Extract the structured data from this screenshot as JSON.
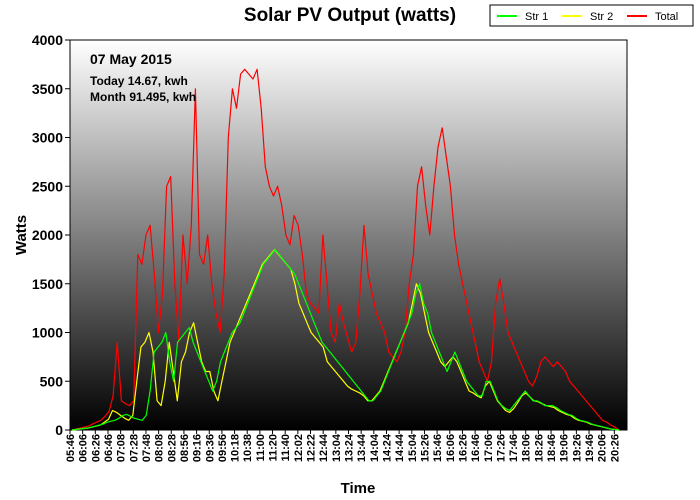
{
  "chart_data": {
    "type": "line",
    "title": "Solar PV Output (watts)",
    "xlabel": "Time",
    "ylabel": "Watts",
    "ylim": [
      0,
      4000
    ],
    "yticks": [
      0,
      500,
      1000,
      1500,
      2000,
      2500,
      3000,
      3500,
      4000
    ],
    "xticks": [
      "05:46",
      "06:06",
      "06:26",
      "06:46",
      "07:08",
      "07:28",
      "07:48",
      "08:08",
      "08:28",
      "08:56",
      "09:16",
      "09:36",
      "09:56",
      "10:18",
      "10:38",
      "11:00",
      "11:20",
      "11:40",
      "12:02",
      "12:22",
      "12:44",
      "13:04",
      "13:24",
      "13:44",
      "14:04",
      "14:24",
      "14:44",
      "15:04",
      "15:26",
      "15:46",
      "16:06",
      "16:26",
      "16:46",
      "17:06",
      "17:26",
      "17:46",
      "18:06",
      "18:26",
      "18:46",
      "19:06",
      "19:26",
      "19:46",
      "20:06",
      "20:26"
    ],
    "legend_position": "top-right",
    "date": "07 May 2015",
    "today_text": "Today 14.67, kwh",
    "month_text": "Month 91.495, kwh",
    "background": "vertical gradient white to black",
    "series": [
      {
        "name": "Str 1",
        "color": "#00ff00",
        "values": [
          0,
          5,
          10,
          15,
          20,
          30,
          40,
          50,
          60,
          80,
          90,
          100,
          120,
          150,
          160,
          140,
          120,
          110,
          100,
          150,
          400,
          800,
          850,
          900,
          1000,
          700,
          500,
          900,
          950,
          1000,
          1050,
          900,
          800,
          700,
          600,
          500,
          400,
          500,
          700,
          800,
          900,
          1000,
          1050,
          1100,
          1200,
          1300,
          1400,
          1500,
          1600,
          1700,
          1750,
          1800,
          1850,
          1800,
          1750,
          1700,
          1650,
          1600,
          1500,
          1400,
          1300,
          1200,
          1100,
          1000,
          900,
          850,
          800,
          750,
          700,
          650,
          600,
          550,
          500,
          450,
          400,
          350,
          300,
          300,
          350,
          400,
          500,
          600,
          700,
          800,
          900,
          1000,
          1100,
          1200,
          1400,
          1500,
          1300,
          1200,
          1000,
          900,
          800,
          700,
          600,
          700,
          800,
          700,
          600,
          500,
          450,
          400,
          350,
          350,
          500,
          500,
          400,
          300,
          250,
          220,
          200,
          250,
          300,
          350,
          400,
          350,
          300,
          300,
          280,
          250,
          250,
          250,
          230,
          200,
          180,
          160,
          150,
          120,
          100,
          90,
          80,
          60,
          50,
          40,
          30,
          20,
          10,
          5,
          0
        ]
      },
      {
        "name": "Str 2",
        "color": "#ffff00",
        "values": [
          0,
          5,
          10,
          15,
          20,
          30,
          40,
          50,
          80,
          110,
          200,
          180,
          150,
          120,
          100,
          150,
          500,
          850,
          900,
          1000,
          800,
          300,
          250,
          500,
          900,
          600,
          300,
          700,
          800,
          1000,
          1100,
          900,
          700,
          600,
          600,
          400,
          300,
          500,
          700,
          900,
          1000,
          1100,
          1200,
          1300,
          1400,
          1500,
          1600,
          1700,
          1750,
          1800,
          1850,
          1800,
          1750,
          1700,
          1650,
          1500,
          1300,
          1200,
          1100,
          1000,
          950,
          900,
          850,
          700,
          650,
          600,
          550,
          500,
          450,
          420,
          400,
          380,
          350,
          300,
          300,
          350,
          400,
          500,
          600,
          700,
          800,
          900,
          1000,
          1100,
          1300,
          1500,
          1400,
          1200,
          1000,
          900,
          800,
          700,
          650,
          700,
          750,
          700,
          600,
          500,
          400,
          380,
          350,
          330,
          450,
          500,
          400,
          300,
          250,
          200,
          180,
          220,
          280,
          350,
          380,
          340,
          300,
          290,
          270,
          250,
          240,
          230,
          200,
          180,
          160,
          150,
          120,
          100,
          90,
          80,
          60,
          50,
          40,
          30,
          20,
          10,
          5,
          0
        ]
      },
      {
        "name": "Total",
        "color": "#ff0000",
        "values": [
          0,
          10,
          20,
          30,
          40,
          60,
          80,
          100,
          140,
          190,
          350,
          900,
          300,
          270,
          250,
          300,
          1800,
          1700,
          2000,
          2100,
          1600,
          1000,
          1400,
          2500,
          2600,
          1500,
          900,
          2000,
          1500,
          2100,
          3500,
          1800,
          1700,
          2000,
          1500,
          1200,
          1000,
          1600,
          3000,
          3500,
          3300,
          3650,
          3700,
          3650,
          3600,
          3700,
          3300,
          2700,
          2500,
          2400,
          2500,
          2300,
          2000,
          1900,
          2200,
          2100,
          1800,
          1400,
          1300,
          1250,
          1200,
          2000,
          1500,
          1000,
          900,
          1300,
          1100,
          950,
          800,
          900,
          1400,
          2100,
          1600,
          1400,
          1200,
          1100,
          1000,
          800,
          750,
          700,
          800,
          1000,
          1500,
          1800,
          2500,
          2700,
          2300,
          2000,
          2500,
          2900,
          3100,
          2800,
          2500,
          2000,
          1700,
          1500,
          1300,
          1100,
          900,
          700,
          600,
          500,
          700,
          1300,
          1550,
          1300,
          1000,
          900,
          800,
          700,
          600,
          500,
          450,
          550,
          700,
          750,
          700,
          650,
          700,
          650,
          600,
          500,
          450,
          400,
          350,
          300,
          250,
          200,
          150,
          100,
          80,
          50,
          30,
          0
        ]
      }
    ]
  }
}
